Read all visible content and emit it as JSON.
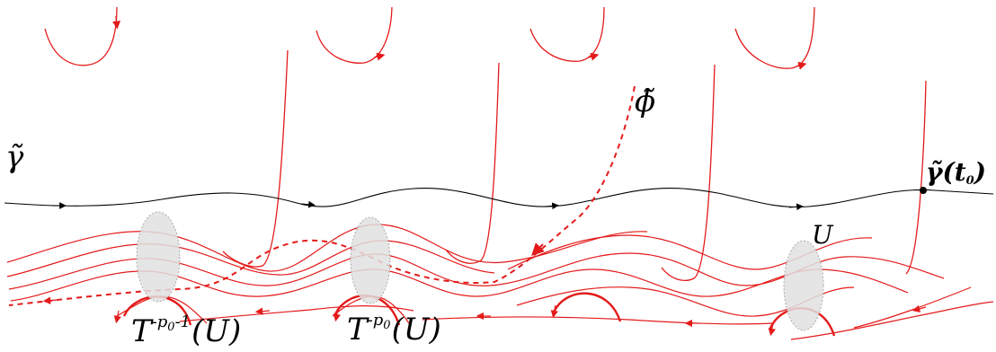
{
  "labels": {
    "gamma_tilde": "γ̃",
    "phi_tilde": "ϕ̃",
    "gamma_t0": {
      "gamma": "γ̃",
      "open": "(t",
      "sub": "0",
      "close": ")"
    },
    "U": "U",
    "T_p0": {
      "base": "T",
      "exp": "-p",
      "exp_sub": "0",
      "arg": "(U)"
    },
    "T_p0_minus1": {
      "base": "T",
      "exp": "-p",
      "exp_sub": "0",
      "exp_rest": "-1",
      "arg": "(U)"
    }
  },
  "colors": {
    "curve": "#e41a1a",
    "gamma": "#000000",
    "ellipse_fill": "#e0e0e0",
    "ellipse_stroke": "#9a9a9a"
  }
}
